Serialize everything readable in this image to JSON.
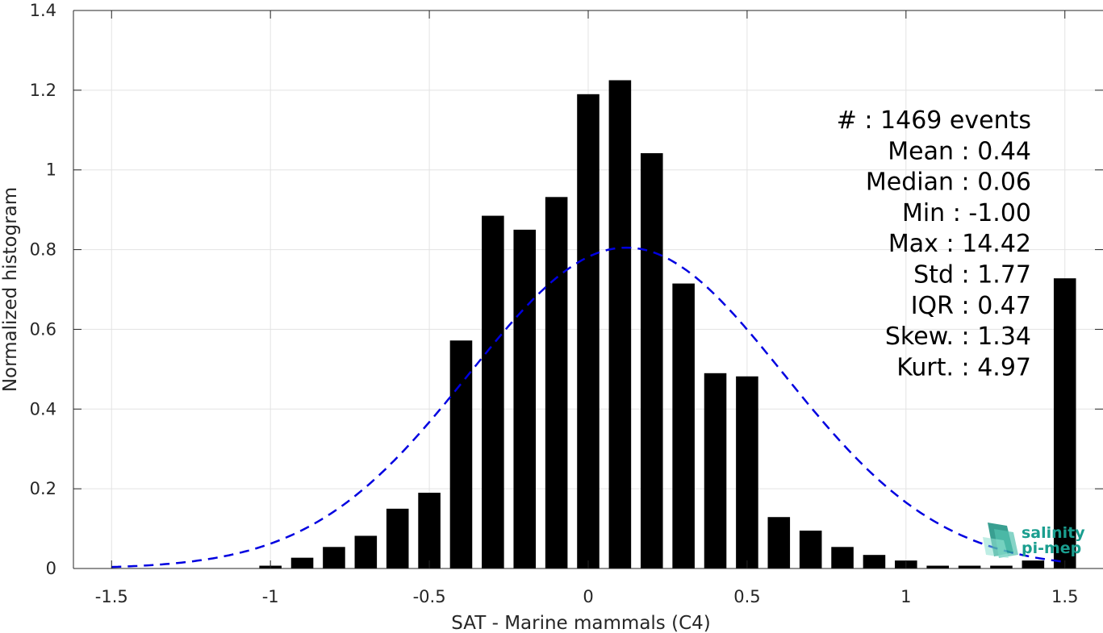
{
  "chart_data": {
    "type": "bar",
    "xlabel": "SAT - Marine mammals (C4)",
    "ylabel": "Normalized histogram",
    "xlim": [
      -1.62,
      1.62
    ],
    "ylim": [
      0,
      1.4
    ],
    "grid": true,
    "xticks": [
      -1.5,
      -1,
      -0.5,
      0,
      0.5,
      1,
      1.5
    ],
    "xtick_labels": [
      "-1.5",
      "-1",
      "-0.5",
      "0",
      "0.5",
      "1",
      "1.5"
    ],
    "yticks": [
      0,
      0.2,
      0.4,
      0.6,
      0.8,
      1,
      1.2,
      1.4
    ],
    "ytick_labels": [
      "0",
      "0.2",
      "0.4",
      "0.6",
      "0.8",
      "1",
      "1.2",
      "1.4"
    ],
    "bar_width": 0.07,
    "bar_color": "#000000",
    "bars": [
      {
        "x": -1.0,
        "value": 0.007
      },
      {
        "x": -0.9,
        "value": 0.027
      },
      {
        "x": -0.8,
        "value": 0.054
      },
      {
        "x": -0.7,
        "value": 0.082
      },
      {
        "x": -0.6,
        "value": 0.15
      },
      {
        "x": -0.5,
        "value": 0.19
      },
      {
        "x": -0.4,
        "value": 0.572
      },
      {
        "x": -0.3,
        "value": 0.885
      },
      {
        "x": -0.2,
        "value": 0.85
      },
      {
        "x": -0.1,
        "value": 0.932
      },
      {
        "x": 0.0,
        "value": 1.19
      },
      {
        "x": 0.1,
        "value": 1.225
      },
      {
        "x": 0.2,
        "value": 1.042
      },
      {
        "x": 0.3,
        "value": 0.715
      },
      {
        "x": 0.4,
        "value": 0.49
      },
      {
        "x": 0.5,
        "value": 0.482
      },
      {
        "x": 0.6,
        "value": 0.129
      },
      {
        "x": 0.7,
        "value": 0.095
      },
      {
        "x": 0.8,
        "value": 0.054
      },
      {
        "x": 0.9,
        "value": 0.034
      },
      {
        "x": 1.0,
        "value": 0.02
      },
      {
        "x": 1.1,
        "value": 0.007
      },
      {
        "x": 1.2,
        "value": 0.007
      },
      {
        "x": 1.3,
        "value": 0.007
      },
      {
        "x": 1.4,
        "value": 0.02
      },
      {
        "x": 1.5,
        "value": 0.728
      }
    ],
    "fit_curve": {
      "type": "gaussian",
      "color": "#0000e0",
      "style": "dashed",
      "mean": 0.12,
      "sigma": 0.495,
      "peak": 0.805,
      "x_range": [
        -1.5,
        1.5
      ]
    },
    "stats": [
      {
        "label": "#",
        "value": ": 1469 events"
      },
      {
        "label": "Mean",
        "value": ": 0.44"
      },
      {
        "label": "Median",
        "value": ": 0.06"
      },
      {
        "label": "Min",
        "value": ": -1.00"
      },
      {
        "label": "Max",
        "value": ": 14.42"
      },
      {
        "label": "Std",
        "value": ": 1.77"
      },
      {
        "label": "IQR",
        "value": ": 0.47"
      },
      {
        "label": "Skew.",
        "value": ": 1.34"
      },
      {
        "label": "Kurt.",
        "value": ": 4.97"
      }
    ]
  },
  "logo": {
    "line1": "salinity",
    "line2": "pi-mep",
    "color": "#1a9e8f"
  }
}
